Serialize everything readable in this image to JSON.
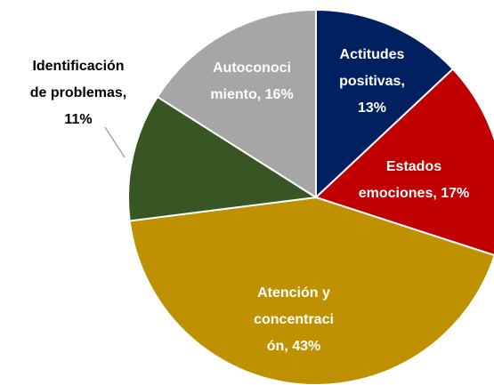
{
  "chart_data": {
    "type": "pie",
    "values": [
      13,
      17,
      43,
      11,
      16
    ],
    "value_labels": [
      [
        "Actitudes",
        "positivas,",
        "13%"
      ],
      [
        "Estados",
        "emociones, 17%"
      ],
      [
        "Atención y",
        "concentraci",
        "ón, 43%"
      ],
      [
        "Identificación",
        "de problemas,",
        "11%"
      ],
      [
        "Autoconoci",
        "miento, 16%"
      ]
    ],
    "colors": [
      "#002060",
      "#c00000",
      "#bf9000",
      "#375623",
      "#a6a6a6"
    ]
  }
}
